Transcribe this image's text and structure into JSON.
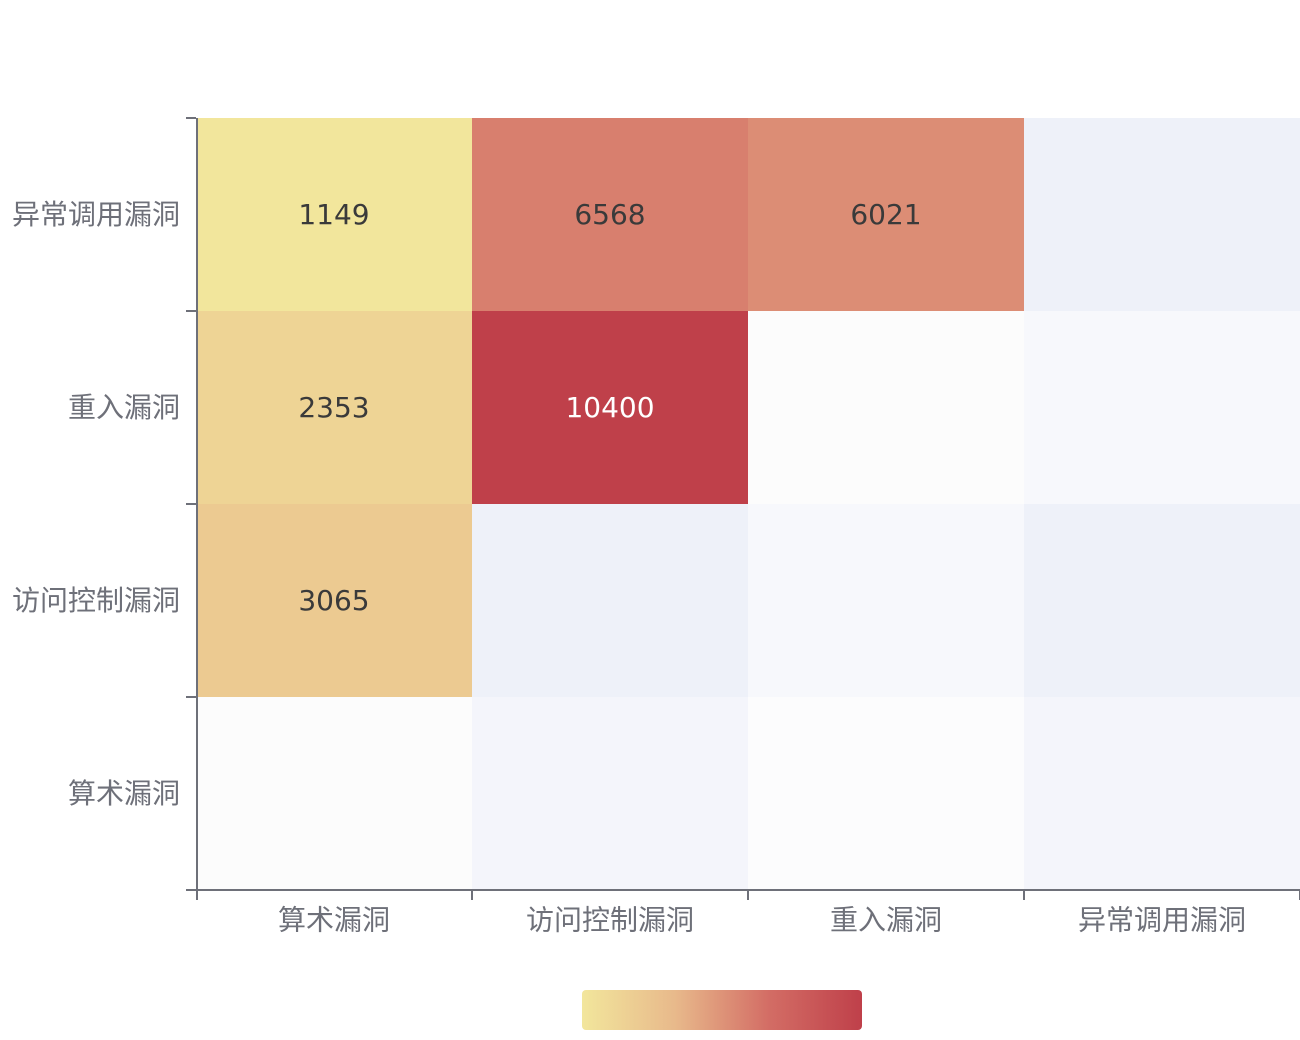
{
  "chart_data": {
    "type": "heatmap",
    "title": "",
    "xlabel": "",
    "ylabel": "",
    "x_categories": [
      "算术漏洞",
      "访问控制漏洞",
      "重入漏洞",
      "异常调用漏洞"
    ],
    "y_categories": [
      "算术漏洞",
      "访问控制漏洞",
      "重入漏洞",
      "异常调用漏洞"
    ],
    "cells": [
      {
        "x": "算术漏洞",
        "y": "异常调用漏洞",
        "value": 1149
      },
      {
        "x": "访问控制漏洞",
        "y": "异常调用漏洞",
        "value": 6568
      },
      {
        "x": "重入漏洞",
        "y": "异常调用漏洞",
        "value": 6021
      },
      {
        "x": "算术漏洞",
        "y": "重入漏洞",
        "value": 2353
      },
      {
        "x": "访问控制漏洞",
        "y": "重入漏洞",
        "value": 10400
      },
      {
        "x": "算术漏洞",
        "y": "访问控制漏洞",
        "value": 3065
      }
    ],
    "empty_cell_colors": [
      [
        "#fcfcfc",
        "#f4f5fb",
        "#fcfcfd",
        "#f4f5fb"
      ],
      [
        "#f7f8fc",
        "#eef1f9",
        "#f7f8fc",
        "#eef1f9"
      ],
      [
        "#f7f8fc",
        "#f7f8fc",
        "#fcfcfc",
        "#f7f8fc"
      ],
      [
        "#f7f8fc",
        "#f7f8fc",
        "#f7f8fc",
        "#eef1f9"
      ]
    ],
    "visual_map": {
      "min": 1149,
      "max": 10400,
      "colors": [
        "#f2e69c",
        "#e8b98b",
        "#d36d65",
        "#bf404a"
      ],
      "orient": "horizontal",
      "position": "bottom-center"
    },
    "colors": {
      "axis_line": "#6e7079",
      "axis_label": "#6e7079",
      "label_dark": "#3a3a3a",
      "label_light": "#ffffff"
    }
  }
}
